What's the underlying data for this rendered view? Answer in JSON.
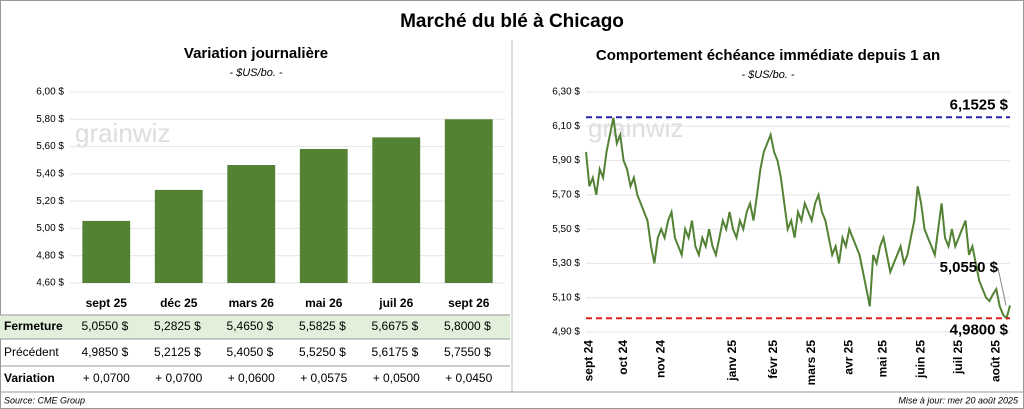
{
  "title": "Marché du blé à Chicago",
  "watermark": "grainwiz",
  "chart_data": [
    {
      "type": "bar",
      "title": "Variation journalière",
      "subtitle": "- $US/bo. -",
      "categories": [
        "sept 25",
        "déc 25",
        "mars 26",
        "mai 26",
        "juil 26",
        "sept 26"
      ],
      "values": [
        5.055,
        5.2825,
        5.465,
        5.5825,
        5.6675,
        5.8
      ],
      "value_labels": [
        "5,0550  $",
        "5,2825  $",
        "5,4650  $",
        "5,5825  $",
        "5,6675  $",
        "5,8000  $"
      ],
      "color": "#548235",
      "ylim": [
        4.6,
        6.0
      ],
      "yticks": [
        {
          "value": 4.6,
          "label": "4,60 $"
        },
        {
          "value": 4.8,
          "label": "4,80 $"
        },
        {
          "value": 5.0,
          "label": "5,00 $"
        },
        {
          "value": 5.2,
          "label": "5,20 $"
        },
        {
          "value": 5.4,
          "label": "5,40 $"
        },
        {
          "value": 5.6,
          "label": "5,60 $"
        },
        {
          "value": 5.8,
          "label": "5,80 $"
        },
        {
          "value": 6.0,
          "label": "6,00 $"
        }
      ]
    },
    {
      "type": "line",
      "title": "Comportement échéance immédiate depuis 1 an",
      "subtitle": "- $US/bo. -",
      "categories": [
        null,
        "sept 24",
        null,
        null,
        null,
        null,
        null,
        null,
        null,
        null,
        null,
        "oct 24",
        null,
        null,
        null,
        null,
        null,
        null,
        null,
        null,
        null,
        null,
        "nov 24",
        null,
        null,
        null,
        null,
        null,
        null,
        null,
        null,
        null,
        null,
        null,
        null,
        null,
        null,
        null,
        null,
        null,
        null,
        null,
        null,
        "janv 25",
        null,
        null,
        null,
        null,
        null,
        null,
        null,
        null,
        null,
        null,
        null,
        "févr 25",
        null,
        null,
        null,
        null,
        null,
        null,
        null,
        null,
        null,
        null,
        "mars 25",
        null,
        null,
        null,
        null,
        null,
        null,
        null,
        null,
        null,
        null,
        "avr 25",
        null,
        null,
        null,
        null,
        null,
        null,
        null,
        null,
        null,
        "mai 25",
        null,
        null,
        null,
        null,
        null,
        null,
        null,
        null,
        null,
        null,
        "juin 25",
        null,
        null,
        null,
        null,
        null,
        null,
        null,
        null,
        null,
        null,
        "juil 25",
        null,
        null,
        null,
        null,
        null,
        null,
        null,
        null,
        null,
        null,
        "août 25",
        null,
        null,
        null,
        null
      ],
      "values": [
        5.95,
        5.75,
        5.8,
        5.7,
        5.85,
        5.8,
        5.95,
        6.05,
        6.15,
        6.0,
        6.05,
        5.9,
        5.85,
        5.75,
        5.8,
        5.7,
        5.65,
        5.6,
        5.55,
        5.4,
        5.3,
        5.45,
        5.5,
        5.45,
        5.55,
        5.6,
        5.45,
        5.4,
        5.35,
        5.5,
        5.45,
        5.55,
        5.4,
        5.35,
        5.45,
        5.4,
        5.5,
        5.4,
        5.35,
        5.45,
        5.55,
        5.5,
        5.6,
        5.5,
        5.45,
        5.55,
        5.5,
        5.6,
        5.65,
        5.55,
        5.7,
        5.85,
        5.95,
        6.0,
        6.05,
        5.95,
        5.9,
        5.8,
        5.65,
        5.5,
        5.55,
        5.45,
        5.6,
        5.55,
        5.65,
        5.6,
        5.55,
        5.65,
        5.7,
        5.6,
        5.55,
        5.45,
        5.35,
        5.4,
        5.3,
        5.45,
        5.4,
        5.5,
        5.45,
        5.4,
        5.35,
        5.25,
        5.15,
        5.05,
        5.35,
        5.3,
        5.4,
        5.45,
        5.35,
        5.25,
        5.3,
        5.35,
        5.4,
        5.3,
        5.35,
        5.45,
        5.55,
        5.75,
        5.65,
        5.5,
        5.45,
        5.4,
        5.35,
        5.5,
        5.65,
        5.45,
        5.4,
        5.5,
        5.4,
        5.45,
        5.5,
        5.55,
        5.35,
        5.4,
        5.3,
        5.2,
        5.15,
        5.1,
        5.08,
        5.12,
        5.15,
        5.05,
        5.0,
        4.98,
        5.055
      ],
      "color": "#548235",
      "ylim": [
        4.9,
        6.3
      ],
      "yticks": [
        {
          "value": 4.9,
          "label": "4,90 $"
        },
        {
          "value": 5.1,
          "label": "5,10 $"
        },
        {
          "value": 5.3,
          "label": "5,30 $"
        },
        {
          "value": 5.5,
          "label": "5,50 $"
        },
        {
          "value": 5.7,
          "label": "5,70 $"
        },
        {
          "value": 5.9,
          "label": "5,90 $"
        },
        {
          "value": 6.1,
          "label": "6,10 $"
        },
        {
          "value": 6.3,
          "label": "6,30 $"
        }
      ],
      "reference_lines": [
        {
          "value": 6.1525,
          "label": "6,1525 $",
          "color": "#2222aa"
        },
        {
          "value": 4.98,
          "label": "4,9800 $",
          "color": "#e02020"
        }
      ],
      "annotation": {
        "value": 5.055,
        "label": "5,0550 $"
      }
    }
  ],
  "table": {
    "fermeture_label": "Fermeture",
    "rows": [
      {
        "label": "Précédent",
        "cells": [
          "4,9850  $",
          "5,2125  $",
          "5,4050  $",
          "5,5250  $",
          "5,6175  $",
          "5,7550  $"
        ]
      },
      {
        "label": "Variation",
        "cells": [
          "+ 0,0700",
          "+ 0,0700",
          "+ 0,0600",
          "+ 0,0575",
          "+ 0,0500",
          "+ 0,0450"
        ]
      }
    ]
  },
  "source": "Source: CME Group",
  "updated": "Mise à jour: mer 20 août 2025"
}
